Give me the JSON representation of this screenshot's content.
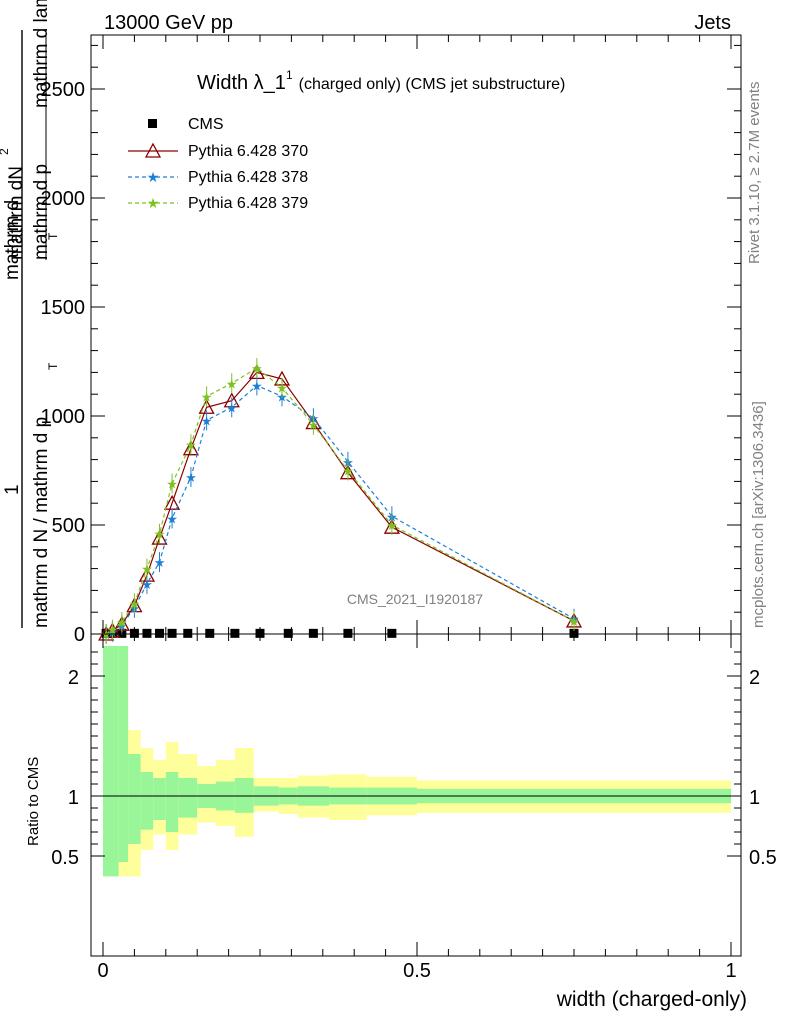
{
  "header": {
    "left": "13000 GeV pp",
    "right": "Jets"
  },
  "side_labels": {
    "rivet": "Rivet 3.1.10, ≥ 2.7M events",
    "mcplots": "mcplots.cern.ch [arXiv:1306.3436]"
  },
  "chart_data": [
    {
      "type": "scatter",
      "title_main": "Width λ_1",
      "title_sup": "1",
      "title_tail": "(charged only) (CMS jet substructure)",
      "ylabel_numerator": "1",
      "ylabel_numerator2": "mathrm d",
      "ylabel_denominator": "mathrm d N / mathrm d p",
      "ylabel_texts": [
        "mathrm dN",
        "mathrm d p",
        "T",
        "mathrm d lambda",
        "mathrm d N / mathrm d p",
        "T",
        "1",
        "mathrm d",
        "2"
      ],
      "watermark": "CMS_2021_I1920187",
      "xlim": [
        0,
        1
      ],
      "ylim": [
        0,
        2750
      ],
      "y_ticks": [
        0,
        500,
        1000,
        1500,
        2000,
        2500
      ],
      "y_tick_labels": [
        "0",
        "500",
        "1000",
        "1500",
        "2000",
        "2500"
      ],
      "legend_placement": "top-left",
      "series": [
        {
          "name": "CMS",
          "color": "#000000",
          "marker": "square",
          "x": [
            0.005,
            0.015,
            0.03,
            0.05,
            0.07,
            0.09,
            0.11,
            0.135,
            0.17,
            0.21,
            0.25,
            0.295,
            0.335,
            0.39,
            0.46,
            0.75
          ],
          "y": [
            3,
            3,
            3,
            3,
            3,
            3,
            3,
            3,
            3,
            3,
            3,
            3,
            3,
            3,
            3,
            3
          ]
        },
        {
          "name": "Pythia 6.428 370",
          "color": "#8b0000",
          "marker": "triangle",
          "line": "solid",
          "x": [
            0.005,
            0.015,
            0.03,
            0.05,
            0.07,
            0.09,
            0.11,
            0.14,
            0.165,
            0.205,
            0.245,
            0.285,
            0.335,
            0.39,
            0.46,
            0.75
          ],
          "y": [
            0,
            15,
            45,
            130,
            270,
            440,
            600,
            850,
            1040,
            1070,
            1200,
            1170,
            970,
            740,
            490,
            60
          ]
        },
        {
          "name": "Pythia 6.428 378",
          "color": "#1e7fd6",
          "marker": "star",
          "line": "dashed",
          "x": [
            0.005,
            0.015,
            0.03,
            0.05,
            0.07,
            0.09,
            0.11,
            0.14,
            0.165,
            0.205,
            0.245,
            0.285,
            0.335,
            0.39,
            0.46,
            0.75
          ],
          "y": [
            0,
            10,
            40,
            120,
            230,
            330,
            530,
            720,
            980,
            1040,
            1140,
            1090,
            990,
            790,
            540,
            70
          ]
        },
        {
          "name": "Pythia 6.428 379",
          "color": "#7cc21f",
          "marker": "star",
          "line": "dashed",
          "x": [
            0.005,
            0.015,
            0.03,
            0.05,
            0.07,
            0.09,
            0.11,
            0.14,
            0.165,
            0.205,
            0.245,
            0.285,
            0.335,
            0.39,
            0.46,
            0.75
          ],
          "y": [
            0,
            20,
            55,
            140,
            300,
            460,
            690,
            870,
            1090,
            1150,
            1220,
            1130,
            960,
            750,
            500,
            60
          ]
        }
      ]
    },
    {
      "type": "bar",
      "ylabel": "Ratio to CMS",
      "xlabel": "width (charged-only)",
      "xlim": [
        0,
        1
      ],
      "ylim": [
        0.33,
        2.25
      ],
      "y_ticks": [
        0.5,
        1,
        2
      ],
      "y_tick_labels": [
        "0.5",
        "1",
        "2"
      ],
      "x_ticks": [
        0,
        0.5,
        1
      ],
      "x_tick_labels": [
        "0",
        "0.5",
        "1"
      ],
      "bin_edges": [
        0,
        0.025,
        0.04,
        0.06,
        0.08,
        0.1,
        0.12,
        0.15,
        0.18,
        0.21,
        0.24,
        0.28,
        0.31,
        0.36,
        0.42,
        0.5,
        1.0
      ],
      "green_band": [
        [
          0.33,
          2.25
        ],
        [
          0.45,
          2.25
        ],
        [
          0.6,
          1.35
        ],
        [
          0.72,
          1.2
        ],
        [
          0.8,
          1.15
        ],
        [
          0.7,
          1.2
        ],
        [
          0.82,
          1.15
        ],
        [
          0.9,
          1.1
        ],
        [
          0.88,
          1.12
        ],
        [
          0.86,
          1.15
        ],
        [
          0.92,
          1.08
        ],
        [
          0.93,
          1.07
        ],
        [
          0.92,
          1.08
        ],
        [
          0.93,
          1.07
        ],
        [
          0.93,
          1.07
        ],
        [
          0.94,
          1.06
        ]
      ],
      "yellow_band": [
        [
          0.33,
          2.25
        ],
        [
          0.33,
          2.25
        ],
        [
          0.33,
          1.55
        ],
        [
          0.55,
          1.4
        ],
        [
          0.68,
          1.3
        ],
        [
          0.55,
          1.45
        ],
        [
          0.68,
          1.35
        ],
        [
          0.78,
          1.25
        ],
        [
          0.75,
          1.3
        ],
        [
          0.66,
          1.4
        ],
        [
          0.87,
          1.15
        ],
        [
          0.85,
          1.15
        ],
        [
          0.82,
          1.17
        ],
        [
          0.8,
          1.18
        ],
        [
          0.84,
          1.16
        ],
        [
          0.86,
          1.13
        ]
      ],
      "colors": {
        "green": "#98f598",
        "yellow": "#fefe9a"
      }
    }
  ]
}
